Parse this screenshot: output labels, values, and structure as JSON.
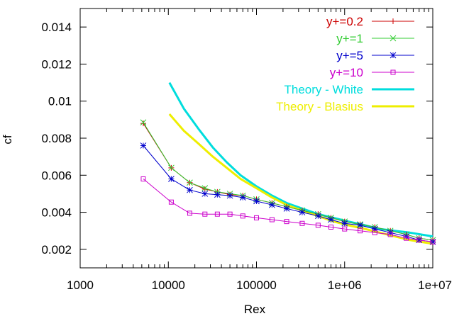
{
  "chart_data": {
    "type": "line",
    "xlabel": "Rex",
    "ylabel": "cf",
    "xscale": "log",
    "xlim": [
      1000,
      10000000
    ],
    "ylim": [
      0.001,
      0.015
    ],
    "xticks": [
      {
        "value": 1000,
        "label": "1000"
      },
      {
        "value": 10000,
        "label": "10000"
      },
      {
        "value": 100000,
        "label": "100000"
      },
      {
        "value": 1000000,
        "label": "1e+06"
      },
      {
        "value": 10000000,
        "label": "1e+07"
      }
    ],
    "yticks": [
      {
        "value": 0.002,
        "label": "0.002"
      },
      {
        "value": 0.004,
        "label": "0.004"
      },
      {
        "value": 0.006,
        "label": "0.006"
      },
      {
        "value": 0.008,
        "label": "0.008"
      },
      {
        "value": 0.01,
        "label": "0.01"
      },
      {
        "value": 0.012,
        "label": "0.012"
      },
      {
        "value": 0.014,
        "label": "0.014"
      }
    ],
    "grid": false,
    "legend_position": "top-right",
    "series": [
      {
        "name": "y+=0.2",
        "color": "#cc0000",
        "marker": "plus",
        "x": [
          5200,
          10800,
          17500,
          26000,
          36000,
          50000,
          70000,
          100000,
          150000,
          220000,
          330000,
          500000,
          700000,
          1000000,
          1500000,
          2200000,
          3300000,
          5000000,
          7000000,
          10000000
        ],
        "y": [
          0.0088,
          0.0064,
          0.0056,
          0.00525,
          0.0051,
          0.00495,
          0.0049,
          0.0047,
          0.0045,
          0.0043,
          0.0041,
          0.0039,
          0.0037,
          0.0035,
          0.00335,
          0.0032,
          0.003,
          0.0028,
          0.0026,
          0.0025
        ]
      },
      {
        "name": "y+=1",
        "color": "#33cc33",
        "marker": "cross",
        "x": [
          5200,
          10800,
          17500,
          26000,
          36000,
          50000,
          70000,
          100000,
          150000,
          220000,
          330000,
          500000,
          700000,
          1000000,
          1500000,
          2200000,
          3300000,
          5000000,
          7000000,
          10000000
        ],
        "y": [
          0.00885,
          0.0064,
          0.0056,
          0.0053,
          0.0051,
          0.005,
          0.0049,
          0.0047,
          0.0045,
          0.0043,
          0.0041,
          0.0039,
          0.0037,
          0.0035,
          0.00335,
          0.0032,
          0.003,
          0.0028,
          0.0026,
          0.0025
        ]
      },
      {
        "name": "y+=5",
        "color": "#0000cc",
        "marker": "star",
        "x": [
          5200,
          10800,
          17500,
          26000,
          36000,
          50000,
          70000,
          100000,
          150000,
          220000,
          330000,
          500000,
          700000,
          1000000,
          1500000,
          2200000,
          3300000,
          5000000,
          7000000,
          10000000
        ],
        "y": [
          0.0076,
          0.0058,
          0.0052,
          0.005,
          0.00495,
          0.0049,
          0.0048,
          0.0046,
          0.0044,
          0.0042,
          0.004,
          0.0038,
          0.0036,
          0.0034,
          0.0033,
          0.0031,
          0.0029,
          0.0027,
          0.0025,
          0.0024
        ]
      },
      {
        "name": "y+=10",
        "color": "#cc00cc",
        "marker": "square",
        "x": [
          5200,
          10800,
          17500,
          26000,
          36000,
          50000,
          70000,
          100000,
          150000,
          220000,
          330000,
          500000,
          700000,
          1000000,
          1500000,
          2200000,
          3300000,
          5000000,
          7000000,
          10000000
        ],
        "y": [
          0.0058,
          0.00455,
          0.00395,
          0.0039,
          0.0039,
          0.0039,
          0.0038,
          0.0037,
          0.0036,
          0.0035,
          0.0034,
          0.0033,
          0.0032,
          0.0031,
          0.003,
          0.0029,
          0.0028,
          0.0026,
          0.0025,
          0.0024
        ]
      },
      {
        "name": "Theory - White",
        "color": "#00dddd",
        "marker": "none",
        "x": [
          10300,
          15000,
          22000,
          32000,
          46000,
          66000,
          100000,
          150000,
          220000,
          330000,
          500000,
          750000,
          1100000,
          1700000,
          2500000,
          3700000,
          5500000,
          10000000
        ],
        "y": [
          0.011,
          0.0096,
          0.0085,
          0.0075,
          0.0067,
          0.006,
          0.0054,
          0.0049,
          0.0045,
          0.0042,
          0.0039,
          0.0037,
          0.0035,
          0.0033,
          0.0031,
          0.003,
          0.0029,
          0.0027
        ]
      },
      {
        "name": "Theory - Blasius",
        "color": "#eeee00",
        "marker": "none",
        "x": [
          10300,
          15000,
          22000,
          32000,
          46000,
          66000,
          100000,
          150000,
          220000,
          330000,
          500000,
          750000,
          1100000,
          1700000,
          2500000,
          3700000,
          5500000,
          10000000
        ],
        "y": [
          0.0093,
          0.0084,
          0.0077,
          0.007,
          0.0064,
          0.0058,
          0.0053,
          0.0048,
          0.0044,
          0.0041,
          0.0038,
          0.0035,
          0.0033,
          0.0031,
          0.0029,
          0.0027,
          0.0025,
          0.0023
        ]
      }
    ]
  }
}
